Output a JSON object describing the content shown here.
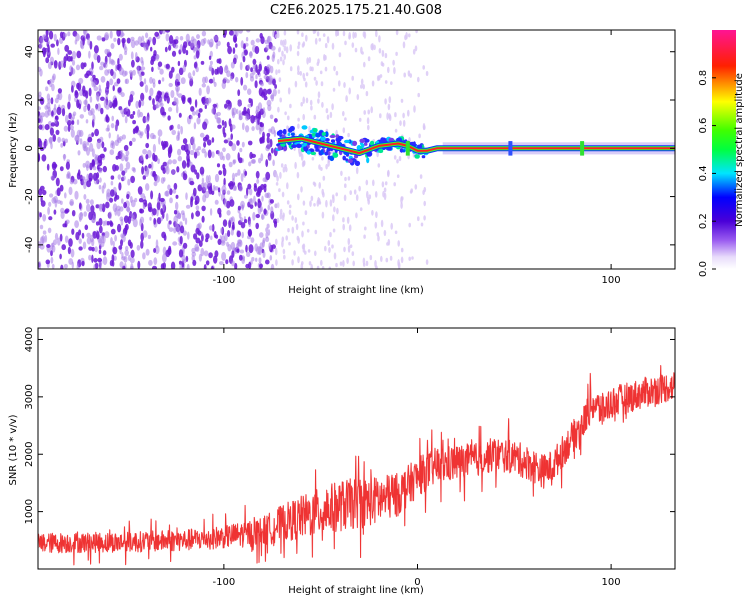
{
  "title": "C2E6.2025.175.21.40.G08",
  "colors": {
    "background": "#ffffff",
    "snr_line": "#ef3333",
    "speckle_dark": "#6a17d6",
    "speckle_light": "#d8c6f5"
  },
  "chart_data": [
    {
      "type": "heatmap",
      "title": "C2E6.2025.175.21.40.G08",
      "xlabel": "Height of straight line (km)",
      "ylabel": "Frequency (Hz)",
      "xlim": [
        -196,
        133
      ],
      "ylim": [
        -50,
        49
      ],
      "xticks": [
        "-100",
        "100"
      ],
      "xtick_values": [
        -100,
        100
      ],
      "yticks": [
        "40",
        "20",
        "0",
        "-20",
        "-40"
      ],
      "ytick_values": [
        40,
        20,
        0,
        -20,
        -40
      ],
      "grid": false,
      "colorbar": {
        "label": "Normalized spectral amplitude",
        "range": [
          0,
          1
        ],
        "ticks": [
          "0.0",
          "0.2",
          "0.4",
          "0.6",
          "0.8"
        ],
        "tick_values": [
          0,
          0.2,
          0.4,
          0.6,
          0.8
        ],
        "colormap": "rainbow (white to violet, blue, cyan, green, yellow, red, magenta)"
      },
      "regions": [
        {
          "description": "noise",
          "x_range": [
            -196,
            -73
          ],
          "frequency_range": [
            -50,
            49
          ],
          "amplitude": 0.05
        },
        {
          "description": "transition noise",
          "x_range": [
            -73,
            5
          ],
          "frequency_range": [
            -50,
            49
          ],
          "amplitude": 0.02
        },
        {
          "description": "signal onset",
          "x_range": [
            -72,
            -22
          ],
          "frequency_center": 2,
          "amplitude": 0.35
        },
        {
          "description": "stable carrier",
          "x_range": [
            13,
            133
          ],
          "frequency_center": 0,
          "amplitude": 0.85
        }
      ],
      "signal_track": {
        "x": [
          -72,
          -60,
          -50,
          -40,
          -30,
          -20,
          -10,
          -5,
          0,
          5,
          10,
          20,
          40,
          60,
          80,
          100,
          133
        ],
        "frequency": [
          3,
          4,
          2,
          0,
          -2,
          1,
          2,
          1,
          -1,
          -1,
          0,
          0,
          0,
          0,
          0,
          0,
          0
        ]
      }
    },
    {
      "type": "line",
      "xlabel": "Height of straight line (km)",
      "ylabel": "SNR (10 * v/v)",
      "xlim": [
        -196,
        133
      ],
      "ylim": [
        0,
        4200
      ],
      "xticks": [
        "-100",
        "0",
        "100"
      ],
      "xtick_values": [
        -100,
        0,
        100
      ],
      "yticks": [
        "1000",
        "2000",
        "3000",
        "4000"
      ],
      "ytick_values": [
        1000,
        2000,
        3000,
        4000
      ],
      "grid": false,
      "series": [
        {
          "x": [
            -196,
            -150,
            -120,
            -100,
            -80,
            -70,
            -60,
            -50,
            -40,
            -30,
            -20,
            -10,
            0,
            10,
            20,
            30,
            40,
            50,
            60,
            65,
            70,
            80,
            85,
            90,
            95,
            100,
            110,
            120,
            133
          ],
          "values": [
            450,
            470,
            500,
            560,
            650,
            800,
            900,
            1000,
            1100,
            1150,
            1200,
            1300,
            1600,
            1800,
            1850,
            1900,
            2000,
            1950,
            1800,
            1700,
            1800,
            2300,
            2500,
            2900,
            2750,
            2900,
            3000,
            3100,
            3200
          ],
          "noise_amplitude": [
            180,
            180,
            190,
            200,
            260,
            320,
            380,
            420,
            450,
            450,
            420,
            380,
            340,
            330,
            320,
            300,
            300,
            300,
            300,
            300,
            290,
            280,
            280,
            320,
            300,
            280,
            270,
            270,
            260
          ]
        }
      ]
    }
  ]
}
